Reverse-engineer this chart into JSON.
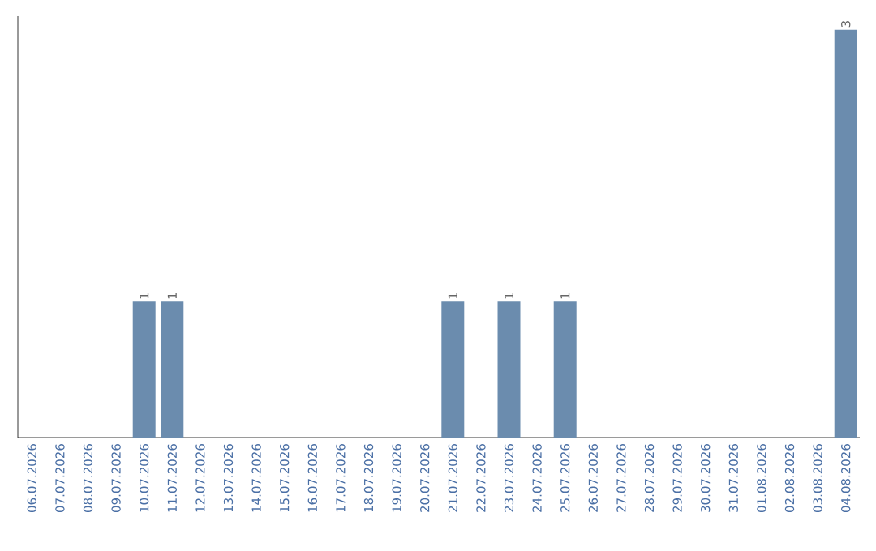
{
  "chart_data": {
    "type": "bar",
    "categories": [
      "06.07.2026",
      "07.07.2026",
      "08.07.2026",
      "09.07.2026",
      "10.07.2026",
      "11.07.2026",
      "12.07.2026",
      "13.07.2026",
      "14.07.2026",
      "15.07.2026",
      "16.07.2026",
      "17.07.2026",
      "18.07.2026",
      "19.07.2026",
      "20.07.2026",
      "21.07.2026",
      "22.07.2026",
      "23.07.2026",
      "24.07.2026",
      "25.07.2026",
      "26.07.2026",
      "27.07.2026",
      "28.07.2026",
      "29.07.2026",
      "30.07.2026",
      "31.07.2026",
      "01.08.2026",
      "02.08.2026",
      "03.08.2026",
      "04.08.2026"
    ],
    "values": [
      null,
      null,
      null,
      null,
      1,
      1,
      null,
      null,
      null,
      null,
      null,
      null,
      null,
      null,
      null,
      1,
      null,
      1,
      null,
      1,
      null,
      null,
      null,
      null,
      null,
      null,
      null,
      null,
      null,
      3
    ],
    "color": "#6b8cae",
    "data_labels": true,
    "ylim": [
      0,
      3.1
    ],
    "tick_labels": "x"
  }
}
